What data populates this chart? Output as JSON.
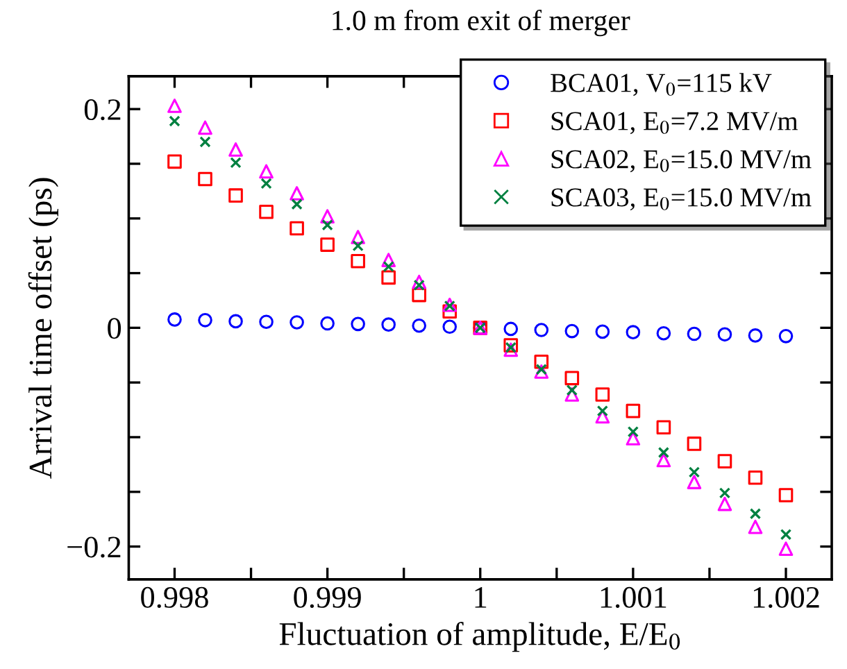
{
  "chart_data": {
    "type": "scatter",
    "title": "1.0 m from exit of merger",
    "xlabel": "Fluctuation of amplitude, E/E$_{0}$",
    "ylabel": "Arrival time offset (ps)",
    "x": [
      0.998,
      0.9982,
      0.9984,
      0.9986,
      0.9988,
      0.999,
      0.9992,
      0.9994,
      0.9996,
      0.9998,
      1.0,
      1.0002,
      1.0004,
      1.0006,
      1.0008,
      1.001,
      1.0012,
      1.0014,
      1.0016,
      1.0018,
      1.002
    ],
    "series": [
      {
        "name": "BCA01, V$_{0}$=115 kV",
        "color": "#0000ff",
        "marker": "circle",
        "values": [
          0.0076,
          0.007,
          0.006,
          0.0055,
          0.005,
          0.004,
          0.0035,
          0.003,
          0.002,
          0.001,
          0.0,
          -0.001,
          -0.002,
          -0.003,
          -0.0035,
          -0.004,
          -0.005,
          -0.0055,
          -0.006,
          -0.007,
          -0.0076
        ]
      },
      {
        "name": "SCA01, E$_{0}$=7.2 MV/m",
        "color": "#ff0000",
        "marker": "square",
        "values": [
          0.152,
          0.136,
          0.121,
          0.106,
          0.091,
          0.076,
          0.061,
          0.046,
          0.03,
          0.015,
          0.0,
          -0.016,
          -0.031,
          -0.046,
          -0.061,
          -0.076,
          -0.091,
          -0.106,
          -0.122,
          -0.137,
          -0.153
        ]
      },
      {
        "name": "SCA02, E$_{0}$=15.0 MV/m",
        "color": "#ff00ff",
        "marker": "triangle",
        "values": [
          0.203,
          0.183,
          0.163,
          0.143,
          0.123,
          0.102,
          0.083,
          0.062,
          0.042,
          0.021,
          0.0,
          -0.02,
          -0.04,
          -0.061,
          -0.081,
          -0.101,
          -0.121,
          -0.141,
          -0.161,
          -0.182,
          -0.202
        ]
      },
      {
        "name": "SCA03, E$_{0}$=15.0 MV/m",
        "color": "#008040",
        "marker": "cross",
        "values": [
          0.189,
          0.17,
          0.151,
          0.132,
          0.113,
          0.094,
          0.075,
          0.056,
          0.039,
          0.02,
          0.0,
          -0.018,
          -0.038,
          -0.057,
          -0.076,
          -0.095,
          -0.114,
          -0.132,
          -0.151,
          -0.17,
          -0.189
        ]
      }
    ],
    "xlim": [
      0.9977,
      1.0023
    ],
    "ylim": [
      -0.23,
      0.23
    ],
    "xticks": [
      0.998,
      {
        "value": 0.9985,
        "label": null
      },
      0.999,
      {
        "value": 0.9995,
        "label": null
      },
      {
        "value": 1.0,
        "label": "1"
      },
      {
        "value": 1.0005,
        "label": null
      },
      1.001,
      {
        "value": 1.0015,
        "label": null
      },
      1.002
    ],
    "yticks": [
      {
        "value": -0.2,
        "label": "−0.2"
      },
      {
        "value": -0.15,
        "label": null
      },
      {
        "value": -0.1,
        "label": null
      },
      {
        "value": -0.05,
        "label": null
      },
      0,
      {
        "value": 0.05,
        "label": null
      },
      {
        "value": 0.1,
        "label": null
      },
      {
        "value": 0.15,
        "label": null
      },
      0.2
    ],
    "grid": false,
    "legend": "top right"
  }
}
